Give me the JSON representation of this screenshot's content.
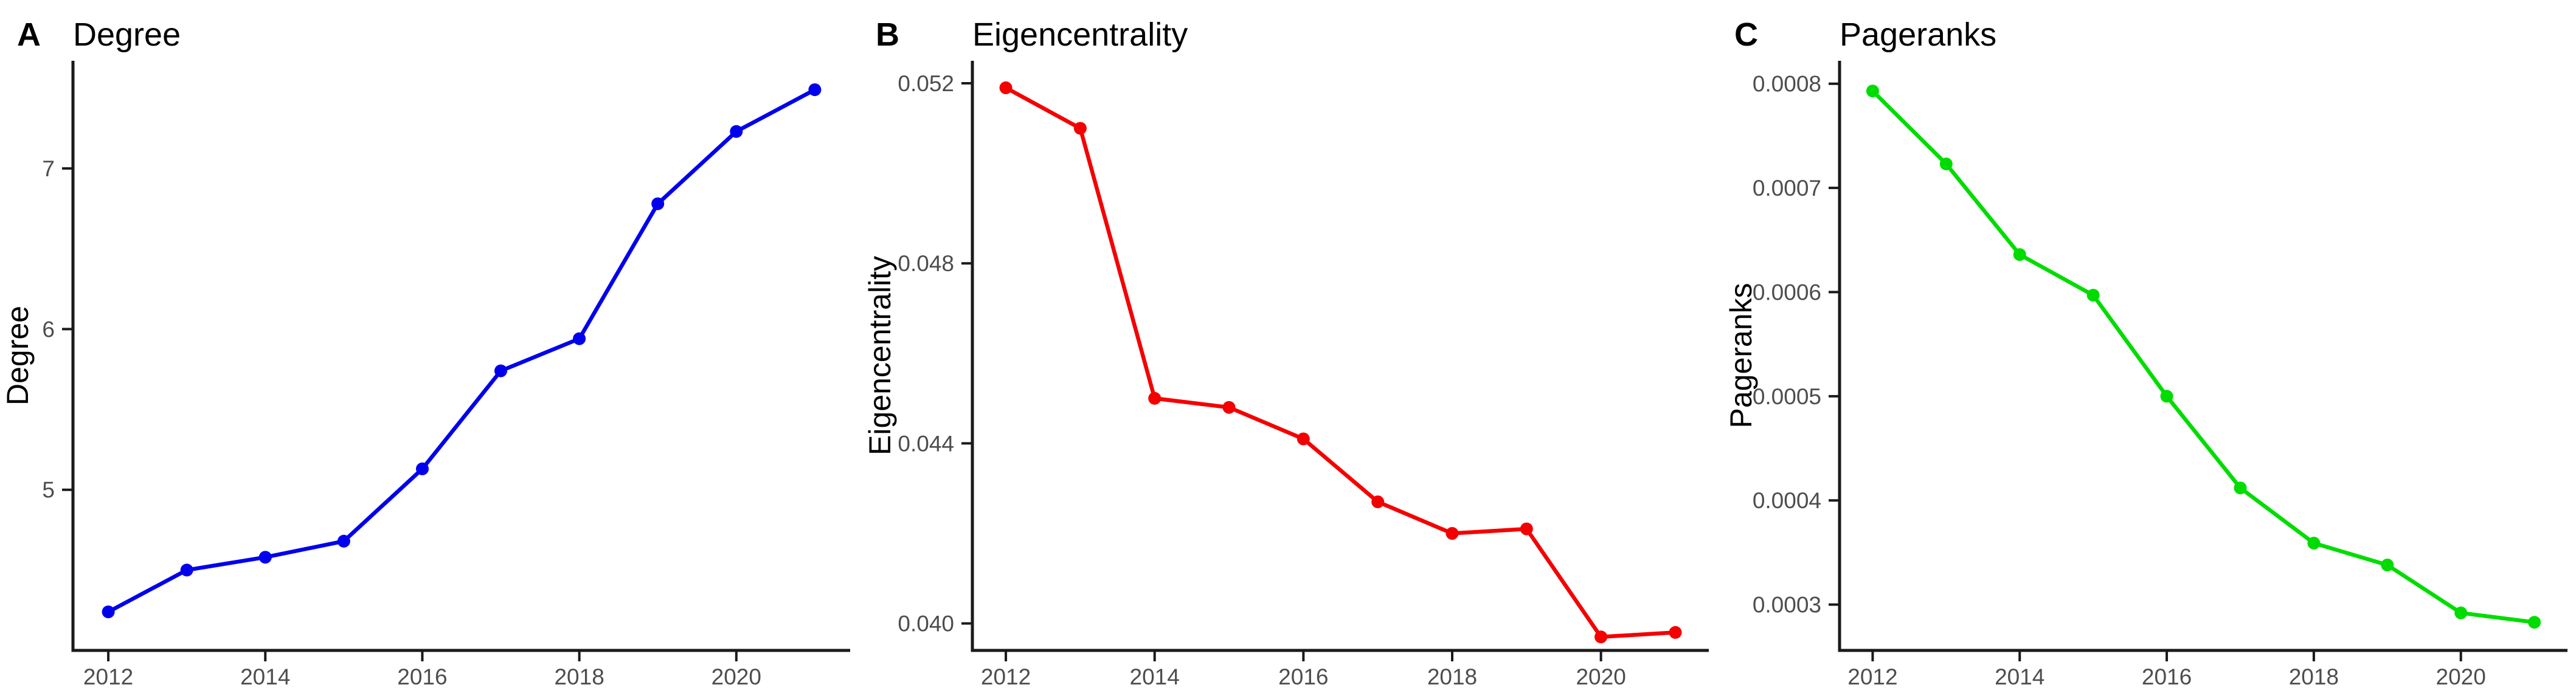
{
  "figure": {
    "background": "#ffffff",
    "text_color": "#000000",
    "axis_color": "#1a1a1a",
    "tick_label_color": "#4d4d4d"
  },
  "chart_data": [
    {
      "type": "line",
      "panel_label": "A",
      "title": "Degree",
      "xlabel": "",
      "ylabel": "Degree",
      "series_color": "#0000EE",
      "marker": "circle",
      "grid": false,
      "legend": "none",
      "x": [
        2012,
        2013,
        2014,
        2015,
        2016,
        2017,
        2018,
        2019,
        2020,
        2021
      ],
      "values": [
        4.24,
        4.5,
        4.58,
        4.68,
        5.13,
        5.74,
        5.94,
        6.78,
        7.23,
        7.49
      ],
      "xticks": [
        2012,
        2014,
        2016,
        2018,
        2020
      ],
      "xtick_labels": [
        "2012",
        "2014",
        "2016",
        "2018",
        "2020"
      ],
      "yticks": [
        5,
        6,
        7
      ],
      "ytick_labels": [
        "5",
        "6",
        "7"
      ],
      "xlim": [
        2011.55,
        2021.45
      ],
      "ylim": [
        4.0,
        7.67
      ]
    },
    {
      "type": "line",
      "panel_label": "B",
      "title": "Eigencentrality",
      "xlabel": "",
      "ylabel": "Eigencentrality",
      "series_color": "#F40000",
      "marker": "circle",
      "grid": false,
      "legend": "none",
      "x": [
        2012,
        2013,
        2014,
        2015,
        2016,
        2017,
        2018,
        2019,
        2020,
        2021
      ],
      "values": [
        0.0519,
        0.051,
        0.045,
        0.0448,
        0.0441,
        0.0427,
        0.042,
        0.0421,
        0.0397,
        0.0398
      ],
      "xticks": [
        2012,
        2014,
        2016,
        2018,
        2020
      ],
      "xtick_labels": [
        "2012",
        "2014",
        "2016",
        "2018",
        "2020"
      ],
      "yticks": [
        0.04,
        0.044,
        0.048,
        0.052
      ],
      "ytick_labels": [
        "0.040",
        "0.044",
        "0.048",
        "0.052"
      ],
      "xlim": [
        2011.55,
        2021.45
      ],
      "ylim": [
        0.0394,
        0.0525
      ]
    },
    {
      "type": "line",
      "panel_label": "C",
      "title": "Pageranks",
      "xlabel": "",
      "ylabel": "Pageranks",
      "series_color": "#00DC00",
      "marker": "circle",
      "grid": false,
      "legend": "none",
      "x": [
        2012,
        2013,
        2014,
        2015,
        2016,
        2017,
        2018,
        2019,
        2020,
        2021
      ],
      "values": [
        0.000793,
        0.000723,
        0.000636,
        0.000597,
        0.0005,
        0.000412,
        0.000359,
        0.000338,
        0.000292,
        0.000283
      ],
      "xticks": [
        2012,
        2014,
        2016,
        2018,
        2020
      ],
      "xtick_labels": [
        "2012",
        "2014",
        "2016",
        "2018",
        "2020"
      ],
      "yticks": [
        0.0003,
        0.0004,
        0.0005,
        0.0006,
        0.0007,
        0.0008
      ],
      "ytick_labels": [
        "0.0003",
        "0.0004",
        "0.0005",
        "0.0006",
        "0.0007",
        "0.0008"
      ],
      "xlim": [
        2011.55,
        2021.45
      ],
      "ylim": [
        0.000256,
        0.000822
      ]
    }
  ]
}
